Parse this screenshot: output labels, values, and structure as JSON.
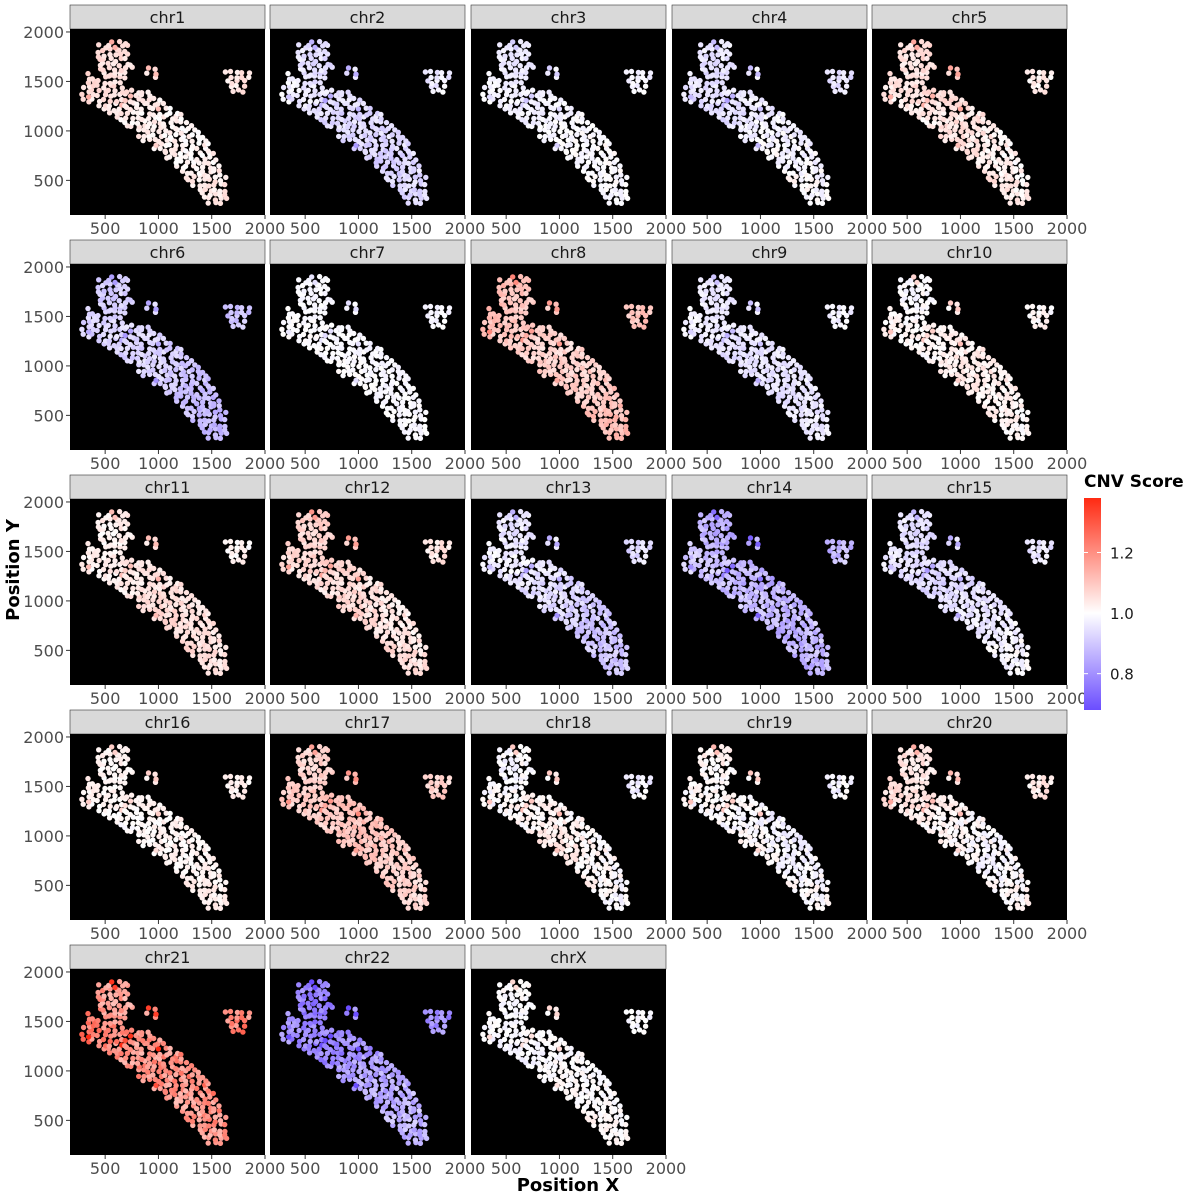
{
  "chart_data": {
    "type": "scatter",
    "layout": "faceted spatial scatter, 5 columns",
    "xlabel": "Position X",
    "ylabel": "Position Y",
    "xlim": [
      170,
      2000
    ],
    "ylim": [
      150,
      2030
    ],
    "x_ticks": [
      500,
      1000,
      1500,
      2000
    ],
    "y_ticks": [
      500,
      1000,
      1500,
      2000
    ],
    "panel_background": "#000000",
    "strip_background": "#d9d9d9",
    "legend": {
      "title": "CNV Score",
      "position": "right",
      "range": [
        0.68,
        1.38
      ],
      "ticks": [
        0.8,
        1.0,
        1.2
      ],
      "colors": {
        "low": "#6b4dff",
        "mid": "#ffffff",
        "high": "#ff2a12"
      }
    },
    "panels": [
      {
        "name": "chr1",
        "mean": 1.04,
        "spread": 0.025
      },
      {
        "name": "chr2",
        "mean": 0.94,
        "spread": 0.03
      },
      {
        "name": "chr3",
        "mean": 0.98,
        "spread": 0.02
      },
      {
        "name": "chr4",
        "mean": 0.97,
        "spread": 0.03
      },
      {
        "name": "chr5",
        "mean": 1.04,
        "spread": 0.03
      },
      {
        "name": "chr6",
        "mean": 0.9,
        "spread": 0.03
      },
      {
        "name": "chr7",
        "mean": 0.99,
        "spread": 0.015
      },
      {
        "name": "chr8",
        "mean": 1.1,
        "spread": 0.03
      },
      {
        "name": "chr9",
        "mean": 0.96,
        "spread": 0.025
      },
      {
        "name": "chr10",
        "mean": 1.01,
        "spread": 0.025
      },
      {
        "name": "chr11",
        "mean": 1.04,
        "spread": 0.025
      },
      {
        "name": "chr12",
        "mean": 1.06,
        "spread": 0.03
      },
      {
        "name": "chr13",
        "mean": 0.93,
        "spread": 0.035
      },
      {
        "name": "chr14",
        "mean": 0.87,
        "spread": 0.045
      },
      {
        "name": "chr15",
        "mean": 0.96,
        "spread": 0.03
      },
      {
        "name": "chr16",
        "mean": 1.02,
        "spread": 0.02
      },
      {
        "name": "chr17",
        "mean": 1.08,
        "spread": 0.03
      },
      {
        "name": "chr18",
        "mean": 1.0,
        "spread": 0.03
      },
      {
        "name": "chr19",
        "mean": 1.0,
        "spread": 0.03
      },
      {
        "name": "chr20",
        "mean": 1.02,
        "spread": 0.03
      },
      {
        "name": "chr21",
        "mean": 1.18,
        "spread": 0.06
      },
      {
        "name": "chr22",
        "mean": 0.82,
        "spread": 0.05
      },
      {
        "name": "chrX",
        "mean": 1.0,
        "spread": 0.02
      }
    ],
    "spot_shape": {
      "regions": [
        {
          "name": "main-lobe",
          "polygon": [
            [
              330,
              1600
            ],
            [
              560,
              1440
            ],
            [
              900,
              1410
            ],
            [
              1150,
              1230
            ],
            [
              1340,
              1050
            ],
            [
              1500,
              860
            ],
            [
              1640,
              520
            ],
            [
              1660,
              290
            ],
            [
              1480,
              220
            ],
            [
              1310,
              450
            ],
            [
              1150,
              660
            ],
            [
              950,
              820
            ],
            [
              740,
              1000
            ],
            [
              520,
              1200
            ],
            [
              270,
              1330
            ]
          ]
        },
        {
          "name": "upper-arm",
          "polygon": [
            [
              430,
              1900
            ],
            [
              720,
              1910
            ],
            [
              760,
              1620
            ],
            [
              650,
              1410
            ],
            [
              470,
              1420
            ],
            [
              430,
              1650
            ]
          ]
        },
        {
          "name": "island",
          "polygon": [
            [
              1620,
              1620
            ],
            [
              1880,
              1600
            ],
            [
              1780,
              1330
            ],
            [
              1680,
              1400
            ]
          ]
        },
        {
          "name": "small-cluster",
          "polygon": [
            [
              880,
              1650
            ],
            [
              970,
              1650
            ],
            [
              980,
              1560
            ],
            [
              1020,
              1500
            ],
            [
              880,
              1540
            ]
          ]
        }
      ],
      "spacing": 52
    }
  }
}
